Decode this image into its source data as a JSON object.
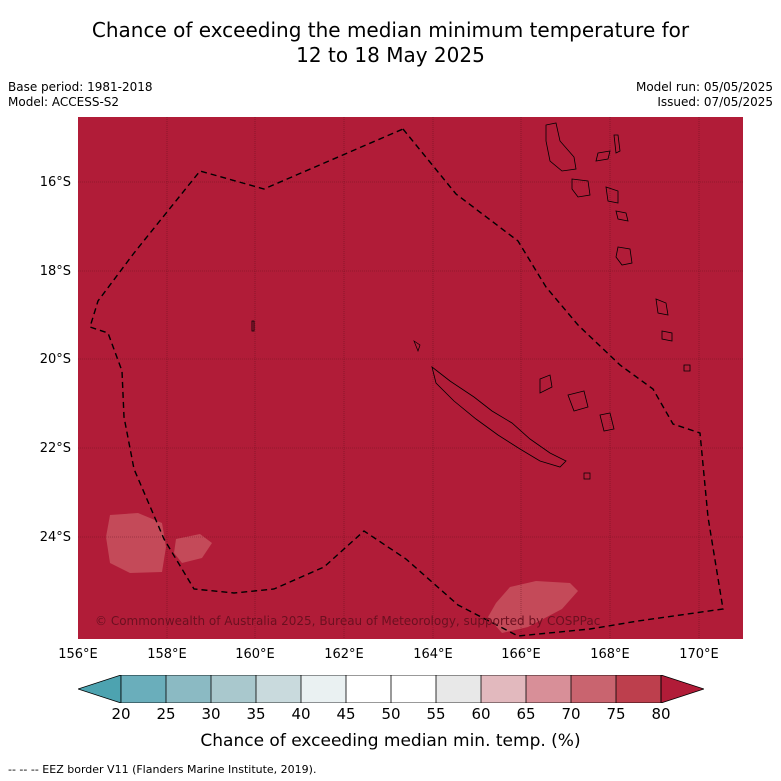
{
  "title_line1": "Chance of exceeding the median minimum temperature for",
  "title_line2": "12 to 18 May 2025",
  "base_period": "Base period: 1981-2018",
  "model": "Model: ACCESS-S2",
  "model_run": "Model run: 05/05/2025",
  "issued": "Issued: 07/05/2025",
  "lat_labels": [
    "16°S",
    "18°S",
    "20°S",
    "22°S",
    "24°S"
  ],
  "lon_labels": [
    "156°E",
    "158°E",
    "160°E",
    "162°E",
    "164°E",
    "166°E",
    "168°E",
    "170°E"
  ],
  "colorbar": {
    "ticks": [
      "20",
      "25",
      "30",
      "35",
      "40",
      "45",
      "50",
      "55",
      "60",
      "65",
      "70",
      "75",
      "80"
    ],
    "title": "Chance of exceeding median min. temp. (%)",
    "colors": [
      "#4da3b0",
      "#6aaebb",
      "#8bbac3",
      "#a9c8cd",
      "#c9dadd",
      "#eaf1f2",
      "#ffffff",
      "#ffffff",
      "#e8e8e8",
      "#e2b9be",
      "#d88f98",
      "#c9646f",
      "#bd3f4d",
      "#b11c38"
    ]
  },
  "map": {
    "background_color": "#b11c38",
    "lighter_patch_color": "#c44a59"
  },
  "copyright": "© Commonwealth of Australia 2025, Bureau of Meteorology, supported by COSPPac",
  "footnote": "--  --  -- EEZ border V11 (Flanders Marine Institute, 2019)."
}
